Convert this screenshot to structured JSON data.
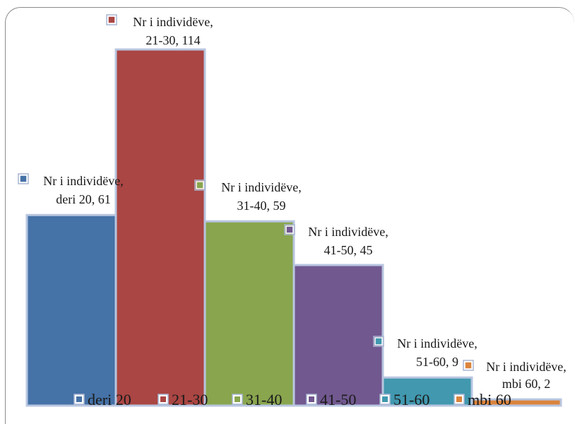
{
  "chart_data": {
    "type": "bar",
    "categories": [
      "deri 20",
      "21-30",
      "31-40",
      "41-50",
      "51-60",
      "mbi 60"
    ],
    "series": [
      {
        "name": "Nr i individëve",
        "values": [
          61,
          114,
          59,
          45,
          9,
          2
        ]
      }
    ],
    "colors": [
      "#4572a7",
      "#aa4643",
      "#89a54e",
      "#71588f",
      "#4198af",
      "#db843d"
    ],
    "data_labels": [
      {
        "line1": "Nr i individëve,",
        "line2": "deri 20, 61"
      },
      {
        "line1": "Nr i individëve,",
        "line2": "21-30, 114"
      },
      {
        "line1": "Nr i individëve,",
        "line2": "31-40, 59"
      },
      {
        "line1": "Nr i individëve,",
        "line2": "41-50, 45"
      },
      {
        "line1": "Nr i individëve,",
        "line2": "51-60, 9"
      },
      {
        "line1": "Nr i individëve,",
        "line2": "mbi 60, 2"
      }
    ],
    "legend": [
      "deri 20",
      "21-30",
      "31-40",
      "41-50",
      "51-60",
      "mbi 60"
    ],
    "legend_position": "bottom",
    "grid": false,
    "ylim": [
      0,
      114
    ]
  }
}
